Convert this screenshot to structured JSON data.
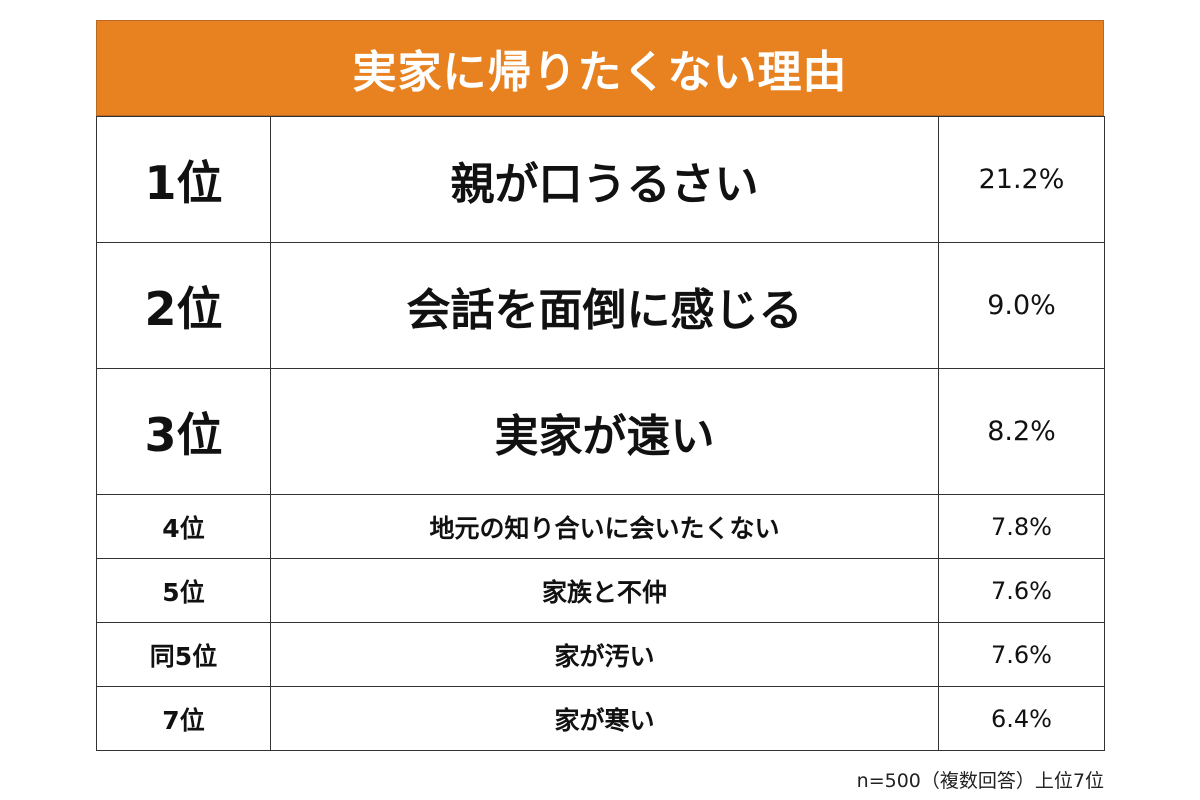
{
  "chart_data": {
    "type": "table",
    "title": "実家に帰りたくない理由",
    "rows": [
      {
        "rank": "1位",
        "reason": "親が口うるさい",
        "value": 21.2,
        "label": "21.2%"
      },
      {
        "rank": "2位",
        "reason": "会話を面倒に感じる",
        "value": 9.0,
        "label": "9.0%"
      },
      {
        "rank": "3位",
        "reason": "実家が遠い",
        "value": 8.2,
        "label": "8.2%"
      },
      {
        "rank": "4位",
        "reason": "地元の知り合いに会いたくない",
        "value": 7.8,
        "label": "7.8%"
      },
      {
        "rank": "5位",
        "reason": "家族と不仲",
        "value": 7.6,
        "label": "7.6%"
      },
      {
        "rank": "同5位",
        "reason": "家が汚い",
        "value": 7.6,
        "label": "7.6%"
      },
      {
        "rank": "7位",
        "reason": "家が寒い",
        "value": 6.4,
        "label": "6.4%"
      }
    ],
    "footnote": "n=500（複数回答）上位7位"
  },
  "colors": {
    "header_background": "#e8811f",
    "header_text": "#ffffff",
    "border": "#333333"
  }
}
